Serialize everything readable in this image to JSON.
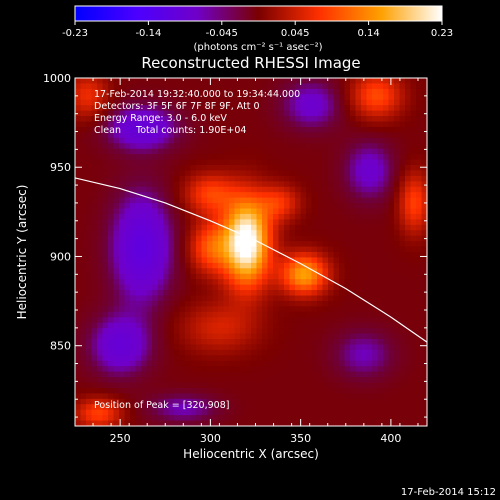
{
  "chart_data": {
    "type": "heatmap",
    "title": "Reconstructed RHESSI Image",
    "xlabel": "Heliocentric X (arcsec)",
    "ylabel": "Heliocentric Y (arcsec)",
    "xlim": [
      225,
      420
    ],
    "ylim": [
      805,
      1000
    ],
    "x_ticks": [
      250,
      300,
      350,
      400
    ],
    "y_ticks": [
      850,
      900,
      950,
      1000
    ],
    "colorbar": {
      "range": [
        -0.23,
        0.23
      ],
      "ticks": [
        "-0.23",
        "-0.14",
        "-0.045",
        "0.045",
        "0.14",
        "0.23"
      ],
      "unit_label": "(photons cm⁻² s⁻¹ asec⁻²)",
      "stops": [
        "#0000ff",
        "#4b00ff",
        "#7000c8",
        "#7a0000",
        "#ff3000",
        "#ffa000",
        "#ffffff"
      ]
    },
    "info_lines": [
      "17-Feb-2014 19:32:40.000 to 19:34:44.000",
      "Detectors: 3F 5F 6F 7F 8F 9F, Att 0",
      "Energy Range: 3.0 - 6.0 keV",
      "Clean     Total counts: 1.90E+04"
    ],
    "peak_label": "Position of Peak = [320,908]",
    "limb_curve": [
      [
        225,
        944
      ],
      [
        250,
        938
      ],
      [
        275,
        930
      ],
      [
        300,
        920
      ],
      [
        325,
        909
      ],
      [
        350,
        896
      ],
      [
        375,
        882
      ],
      [
        400,
        866
      ],
      [
        420,
        852
      ]
    ],
    "sources": [
      {
        "x": 320,
        "y": 908,
        "amp": 1.0,
        "sx": 9,
        "sy": 17
      },
      {
        "x": 352,
        "y": 890,
        "amp": 0.62,
        "sx": 9,
        "sy": 8
      },
      {
        "x": 300,
        "y": 935,
        "amp": 0.35,
        "sx": 10,
        "sy": 8
      },
      {
        "x": 338,
        "y": 930,
        "amp": 0.3,
        "sx": 8,
        "sy": 7
      },
      {
        "x": 300,
        "y": 905,
        "amp": 0.4,
        "sx": 8,
        "sy": 10
      },
      {
        "x": 392,
        "y": 990,
        "amp": 0.38,
        "sx": 10,
        "sy": 9
      },
      {
        "x": 413,
        "y": 930,
        "amp": 0.35,
        "sx": 6,
        "sy": 12
      },
      {
        "x": 238,
        "y": 812,
        "amp": 0.35,
        "sx": 9,
        "sy": 6
      },
      {
        "x": 232,
        "y": 990,
        "amp": 0.28,
        "sx": 8,
        "sy": 9
      },
      {
        "x": 305,
        "y": 860,
        "amp": 0.22,
        "sx": 15,
        "sy": 10
      },
      {
        "x": 262,
        "y": 972,
        "amp": -0.3,
        "sx": 14,
        "sy": 9
      },
      {
        "x": 262,
        "y": 905,
        "amp": -0.35,
        "sx": 12,
        "sy": 22
      },
      {
        "x": 250,
        "y": 850,
        "amp": -0.28,
        "sx": 12,
        "sy": 12
      },
      {
        "x": 388,
        "y": 948,
        "amp": -0.22,
        "sx": 10,
        "sy": 12
      },
      {
        "x": 356,
        "y": 985,
        "amp": -0.22,
        "sx": 12,
        "sy": 10
      },
      {
        "x": 385,
        "y": 845,
        "amp": -0.18,
        "sx": 12,
        "sy": 10
      },
      {
        "x": 285,
        "y": 815,
        "amp": -0.18,
        "sx": 14,
        "sy": 6
      }
    ]
  },
  "footer_date": "17-Feb-2014 15:12"
}
